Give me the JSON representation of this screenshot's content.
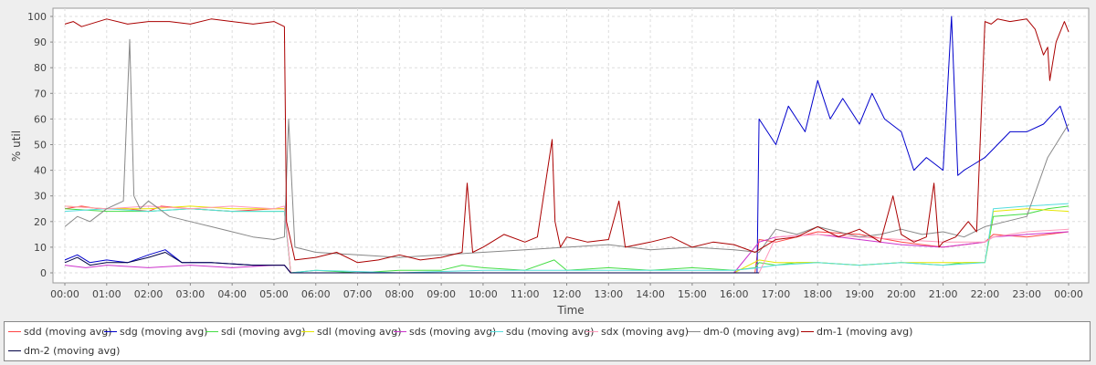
{
  "chart_data": {
    "type": "line",
    "title": "",
    "xlabel": "Time",
    "ylabel": "% util",
    "ylim": [
      0,
      100
    ],
    "yticks": [
      0,
      10,
      20,
      30,
      40,
      50,
      60,
      70,
      80,
      90,
      100
    ],
    "xlim": [
      0,
      24
    ],
    "xtick_labels": [
      "00:00",
      "01:00",
      "02:00",
      "03:00",
      "04:00",
      "05:00",
      "06:00",
      "07:00",
      "08:00",
      "09:00",
      "10:00",
      "11:00",
      "12:00",
      "13:00",
      "14:00",
      "15:00",
      "16:00",
      "17:00",
      "18:00",
      "19:00",
      "20:00",
      "21:00",
      "22:00",
      "23:00",
      "00:00"
    ],
    "grid": true,
    "legend_position": "bottom",
    "series": [
      {
        "name": "sdd (moving avg)",
        "color": "#ff4444",
        "x": [
          0,
          0.4,
          0.8,
          1.5,
          2.0,
          2.3,
          3,
          4,
          5,
          5.25,
          5.4,
          6,
          8,
          9.5,
          10,
          11,
          11.7,
          12,
          13,
          14,
          15,
          16,
          16.5,
          16.6,
          17,
          17.5,
          18,
          19,
          20,
          21,
          21.5,
          22,
          22.2,
          23,
          23.5,
          24
        ],
        "y": [
          25,
          26,
          25,
          25,
          24,
          26,
          25,
          24,
          25,
          25,
          0,
          0,
          0,
          0,
          0,
          0,
          0,
          0,
          0,
          0,
          0,
          0,
          0,
          13,
          12,
          14,
          16,
          15,
          12,
          10,
          11,
          12,
          15,
          14,
          15,
          16
        ]
      },
      {
        "name": "sdg (moving avg)",
        "color": "#0000cc",
        "x": [
          0,
          0.3,
          0.6,
          1,
          1.5,
          2,
          2.4,
          2.8,
          3.5,
          4.5,
          5.25,
          5.4,
          6,
          8,
          10,
          12,
          14,
          16,
          16.55,
          16.6,
          17,
          17.3,
          17.7,
          18,
          18.3,
          18.6,
          19,
          19.3,
          19.6,
          20,
          20.3,
          20.6,
          21,
          21.2,
          21.35,
          21.5,
          21.7,
          22,
          22.3,
          22.6,
          23,
          23.4,
          23.8,
          24
        ],
        "y": [
          5,
          7,
          4,
          5,
          4,
          7,
          9,
          4,
          4,
          3,
          3,
          0,
          0,
          0,
          0,
          0,
          0,
          0,
          0,
          60,
          50,
          65,
          55,
          75,
          60,
          68,
          58,
          70,
          60,
          55,
          40,
          45,
          40,
          100,
          38,
          40,
          42,
          45,
          50,
          55,
          55,
          58,
          65,
          55
        ]
      },
      {
        "name": "sdi (moving avg)",
        "color": "#44dd44",
        "x": [
          0,
          1,
          2,
          3,
          4,
          5,
          5.25,
          5.4,
          6,
          7,
          8,
          9,
          9.5,
          10,
          11,
          11.7,
          12,
          13,
          14,
          15,
          16,
          16.5,
          16.6,
          17,
          17.5,
          18,
          19,
          20,
          21,
          21.5,
          22,
          22.2,
          23,
          23.5,
          24
        ],
        "y": [
          25,
          24,
          24,
          25,
          24,
          24,
          24,
          0,
          1,
          0,
          1,
          1,
          3,
          2,
          1,
          5,
          1,
          2,
          1,
          2,
          1,
          2,
          4,
          3,
          4,
          4,
          3,
          4,
          3,
          4,
          4,
          22,
          23,
          25,
          26
        ]
      },
      {
        "name": "sdl (moving avg)",
        "color": "#e6e600",
        "x": [
          0,
          1,
          2,
          3,
          4,
          5,
          5.25,
          5.4,
          6,
          8,
          10,
          12,
          14,
          16,
          16.6,
          17,
          18,
          19,
          20,
          21,
          22,
          22.2,
          23,
          24
        ],
        "y": [
          26,
          25,
          25,
          26,
          25,
          25,
          25,
          0,
          0,
          0,
          0,
          0,
          0,
          0,
          5,
          4,
          4,
          3,
          4,
          4,
          4,
          24,
          25,
          24
        ]
      },
      {
        "name": "sds (moving avg)",
        "color": "#cc33cc",
        "x": [
          0,
          0.5,
          1,
          2,
          3,
          4,
          5,
          5.25,
          5.4,
          6,
          8,
          10,
          12,
          14,
          16,
          16.6,
          17,
          18,
          19,
          20,
          21,
          22,
          22.2,
          23,
          24
        ],
        "y": [
          3,
          2,
          3,
          2,
          3,
          2,
          3,
          3,
          0,
          0,
          0,
          0,
          0,
          0,
          0,
          12,
          14,
          15,
          13,
          11,
          10,
          12,
          14,
          15,
          16
        ]
      },
      {
        "name": "sdu (moving avg)",
        "color": "#55dddd",
        "x": [
          0,
          1,
          2,
          3,
          4,
          5,
          5.25,
          5.4,
          6,
          8,
          10,
          12,
          14,
          16,
          16.6,
          17,
          18,
          19,
          20,
          21,
          22,
          22.2,
          23,
          24
        ],
        "y": [
          24,
          25,
          24,
          25,
          24,
          24,
          24,
          0,
          1,
          0,
          1,
          1,
          1,
          1,
          2,
          3,
          4,
          3,
          4,
          3,
          4,
          25,
          26,
          27
        ]
      },
      {
        "name": "sdx (moving avg)",
        "color": "#ff99bb",
        "x": [
          0,
          1,
          2,
          3,
          4,
          5,
          5.25,
          5.4,
          6,
          8,
          10,
          12,
          14,
          16,
          16.6,
          17,
          18,
          19,
          20,
          21,
          22,
          22.2,
          23,
          24
        ],
        "y": [
          26,
          25,
          26,
          25,
          26,
          25,
          26,
          0,
          0,
          0,
          0,
          0,
          0,
          0,
          0,
          14,
          15,
          14,
          13,
          12,
          12,
          14,
          16,
          17
        ]
      },
      {
        "name": "dm-0 (moving avg)",
        "color": "#888888",
        "x": [
          0,
          0.3,
          0.6,
          1,
          1.4,
          1.55,
          1.65,
          1.8,
          2,
          2.5,
          3,
          3.5,
          4,
          4.5,
          5,
          5.25,
          5.35,
          5.5,
          6,
          7,
          8,
          9,
          10,
          11,
          12,
          13,
          14,
          15,
          16,
          16.6,
          17,
          17.5,
          18,
          18.5,
          19,
          19.5,
          20,
          20.5,
          21,
          21.5,
          22,
          22.5,
          23,
          23.5,
          24
        ],
        "y": [
          18,
          22,
          20,
          25,
          28,
          91,
          30,
          25,
          28,
          22,
          20,
          18,
          16,
          14,
          13,
          14,
          60,
          10,
          8,
          7,
          6,
          7,
          8,
          9,
          10,
          11,
          9,
          10,
          9,
          8,
          17,
          15,
          18,
          16,
          14,
          15,
          17,
          15,
          16,
          14,
          18,
          20,
          22,
          45,
          58
        ]
      },
      {
        "name": "dm-1 (moving avg)",
        "color": "#aa0000",
        "x": [
          0,
          0.2,
          0.4,
          1,
          1.5,
          2,
          2.5,
          3,
          3.5,
          4,
          4.5,
          5,
          5.25,
          5.3,
          5.5,
          6,
          6.5,
          7,
          7.5,
          8,
          8.5,
          9,
          9.5,
          9.62,
          9.75,
          10,
          10.5,
          11,
          11.3,
          11.65,
          11.72,
          11.85,
          12,
          12.5,
          13,
          13.25,
          13.4,
          14,
          14.5,
          15,
          15.5,
          16,
          16.5,
          16.6,
          17,
          17.5,
          18,
          18.5,
          19,
          19.5,
          19.8,
          20,
          20.3,
          20.6,
          20.78,
          20.9,
          21,
          21.3,
          21.6,
          21.8,
          22,
          22.15,
          22.3,
          22.6,
          23,
          23.2,
          23.4,
          23.5,
          23.55,
          23.7,
          23.9,
          24
        ],
        "y": [
          97,
          98,
          96,
          99,
          97,
          98,
          98,
          97,
          99,
          98,
          97,
          98,
          96,
          20,
          5,
          6,
          8,
          4,
          5,
          7,
          5,
          6,
          8,
          35,
          8,
          10,
          15,
          12,
          14,
          52,
          20,
          10,
          14,
          12,
          13,
          28,
          10,
          12,
          14,
          10,
          12,
          11,
          8,
          9,
          13,
          14,
          18,
          14,
          17,
          12,
          30,
          15,
          12,
          14,
          35,
          10,
          12,
          14,
          20,
          16,
          98,
          97,
          99,
          98,
          99,
          95,
          85,
          88,
          75,
          90,
          98,
          94
        ]
      },
      {
        "name": "dm-2 (moving avg)",
        "color": "#000044",
        "x": [
          0,
          0.3,
          0.6,
          1,
          1.5,
          2,
          2.4,
          2.8,
          3.5,
          4.5,
          5.25,
          5.4,
          6,
          8,
          10,
          12,
          14,
          16,
          16.6
        ],
        "y": [
          4,
          6,
          3,
          4,
          4,
          6,
          8,
          4,
          4,
          3,
          3,
          0,
          0,
          0,
          0,
          0,
          0,
          0,
          0
        ]
      }
    ]
  }
}
